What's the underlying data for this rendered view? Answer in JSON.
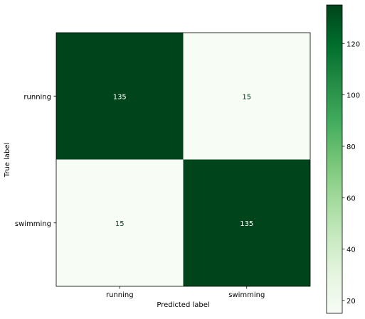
{
  "chart_data": {
    "type": "heatmap",
    "title": "",
    "xlabel": "Predicted label",
    "ylabel": "True label",
    "x_categories": [
      "running",
      "swimming"
    ],
    "y_categories": [
      "running",
      "swimming"
    ],
    "values": [
      [
        135,
        15
      ],
      [
        15,
        135
      ]
    ],
    "colormap": "Greens",
    "colorbar": {
      "vmin": 15,
      "vmax": 135,
      "ticks": [
        20,
        40,
        60,
        80,
        100,
        120
      ],
      "tick_labels": [
        "20",
        "40",
        "60",
        "80",
        "100",
        "120"
      ]
    },
    "colors": {
      "high": "#00441b",
      "low": "#f7fcf5",
      "text_on_dark": "#ffffff",
      "text_on_light": "#00441b"
    }
  }
}
